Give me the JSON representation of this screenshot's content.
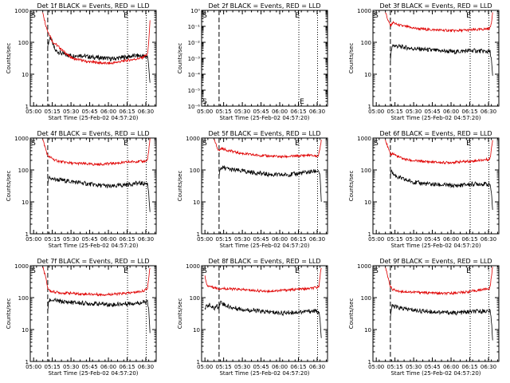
{
  "figure": {
    "xlabel": "Start Time (25-Feb-02 04:57:20)",
    "ylabel": "Counts/sec",
    "x_tick_labels": [
      "05:00",
      "05:15",
      "05:30",
      "05:45",
      "06:00",
      "06:15",
      "06:30"
    ],
    "y_tick_labels": [
      "1",
      "10",
      "100",
      "1000"
    ],
    "y_tick_labels_panel2": [
      "10⁻⁶",
      "10⁻⁵",
      "10⁻⁴",
      "10⁻³",
      "10⁻²",
      "10⁻¹",
      "10⁰"
    ],
    "marker_start": "S",
    "marker_end": "E",
    "colors": {
      "events": "#000000",
      "lld": "#e00000"
    }
  },
  "chart_data": [
    {
      "type": "line",
      "detector": "1f",
      "title": "Det 1f BLACK = Events, RED = LLD",
      "xlim": [
        0,
        101
      ],
      "ylim": [
        1,
        1000
      ],
      "yscale": "log",
      "x_ticks_min": [
        2.67,
        17.67,
        32.67,
        47.67,
        62.67,
        77.67,
        92.67
      ],
      "vlines": {
        "dashed": 14,
        "dotted": [
          78,
          93
        ]
      },
      "series": [
        {
          "name": "Events",
          "color": "#000000",
          "x": [
            14,
            16,
            18,
            20,
            25,
            30,
            35,
            40,
            45,
            50,
            55,
            60,
            65,
            70,
            75,
            80,
            85,
            90,
            94,
            95,
            96
          ],
          "y": [
            80,
            150,
            90,
            55,
            45,
            40,
            38,
            40,
            36,
            34,
            33,
            32,
            30,
            32,
            34,
            36,
            38,
            37,
            35,
            20,
            5
          ]
        },
        {
          "name": "LLD",
          "color": "#e00000",
          "x": [
            10,
            12,
            14,
            16,
            18,
            20,
            25,
            30,
            35,
            40,
            45,
            50,
            55,
            60,
            65,
            70,
            75,
            80,
            85,
            90,
            93,
            94,
            95,
            96
          ],
          "y": [
            900,
            400,
            220,
            160,
            100,
            90,
            60,
            40,
            30,
            28,
            25,
            24,
            23,
            22,
            22,
            24,
            26,
            28,
            30,
            33,
            40,
            40,
            100,
            450
          ]
        }
      ]
    },
    {
      "type": "line",
      "detector": "2f",
      "title": "Det 2f BLACK = Events, RED = LLD",
      "xlim": [
        0,
        101
      ],
      "ylim": [
        1e-06,
        1
      ],
      "yscale": "log",
      "x_ticks_min": [
        2.67,
        17.67,
        32.67,
        47.67,
        62.67,
        77.67,
        92.67
      ],
      "vlines": {
        "dashed": 14,
        "dotted": [
          78,
          93
        ]
      },
      "series": []
    },
    {
      "type": "line",
      "detector": "3f",
      "title": "Det 3f BLACK = Events, RED = LLD",
      "xlim": [
        0,
        101
      ],
      "ylim": [
        1,
        1000
      ],
      "yscale": "log",
      "x_ticks_min": [
        2.67,
        17.67,
        32.67,
        47.67,
        62.67,
        77.67,
        92.67
      ],
      "vlines": {
        "dashed": 14,
        "dotted": [
          78,
          93
        ]
      },
      "series": [
        {
          "name": "Events",
          "color": "#000000",
          "x": [
            14,
            15,
            16,
            20,
            25,
            30,
            35,
            40,
            45,
            50,
            55,
            60,
            65,
            70,
            75,
            80,
            85,
            90,
            94,
            95,
            96
          ],
          "y": [
            30,
            60,
            80,
            75,
            70,
            65,
            62,
            60,
            58,
            55,
            54,
            52,
            50,
            52,
            54,
            55,
            53,
            52,
            50,
            30,
            8
          ]
        },
        {
          "name": "LLD",
          "color": "#e00000",
          "x": [
            10,
            12,
            14,
            16,
            20,
            25,
            30,
            35,
            40,
            45,
            50,
            55,
            60,
            65,
            70,
            75,
            80,
            85,
            90,
            93,
            94,
            95,
            96
          ],
          "y": [
            900,
            500,
            330,
            420,
            350,
            320,
            290,
            270,
            260,
            250,
            245,
            240,
            235,
            230,
            235,
            240,
            245,
            250,
            260,
            270,
            280,
            400,
            900
          ]
        }
      ]
    },
    {
      "type": "line",
      "detector": "4f",
      "title": "Det 4f BLACK = Events, RED = LLD",
      "xlim": [
        0,
        101
      ],
      "ylim": [
        1,
        1000
      ],
      "yscale": "log",
      "x_ticks_min": [
        2.67,
        17.67,
        32.67,
        47.67,
        62.67,
        77.67,
        92.67
      ],
      "vlines": {
        "dashed": 14,
        "dotted": [
          78,
          93
        ]
      },
      "series": [
        {
          "name": "Events",
          "color": "#000000",
          "x": [
            14,
            15,
            16,
            20,
            25,
            30,
            35,
            40,
            45,
            50,
            55,
            60,
            65,
            70,
            75,
            80,
            85,
            90,
            94,
            95,
            96
          ],
          "y": [
            30,
            60,
            55,
            50,
            48,
            45,
            42,
            40,
            37,
            35,
            33,
            32,
            30,
            32,
            34,
            36,
            38,
            38,
            37,
            20,
            5
          ]
        },
        {
          "name": "LLD",
          "color": "#e00000",
          "x": [
            10,
            12,
            14,
            16,
            20,
            25,
            30,
            35,
            40,
            45,
            50,
            55,
            60,
            65,
            70,
            75,
            80,
            85,
            90,
            93,
            94,
            95,
            96
          ],
          "y": [
            900,
            500,
            280,
            250,
            200,
            180,
            170,
            160,
            160,
            155,
            150,
            150,
            155,
            160,
            165,
            170,
            180,
            185,
            185,
            190,
            210,
            400,
            900
          ]
        }
      ]
    },
    {
      "type": "line",
      "detector": "5f",
      "title": "Det 5f BLACK = Events, RED = LLD",
      "xlim": [
        0,
        101
      ],
      "ylim": [
        1,
        1000
      ],
      "yscale": "log",
      "x_ticks_min": [
        2.67,
        17.67,
        32.67,
        47.67,
        62.67,
        77.67,
        92.67
      ],
      "vlines": {
        "dashed": 14,
        "dotted": [
          78,
          93
        ]
      },
      "series": [
        {
          "name": "Events",
          "color": "#000000",
          "x": [
            14,
            15,
            16,
            20,
            25,
            30,
            35,
            40,
            45,
            50,
            55,
            60,
            65,
            70,
            75,
            80,
            85,
            90,
            94,
            95,
            96
          ],
          "y": [
            60,
            110,
            120,
            110,
            100,
            95,
            90,
            85,
            80,
            75,
            72,
            70,
            70,
            72,
            75,
            80,
            85,
            90,
            95,
            60,
            10
          ]
        },
        {
          "name": "LLD",
          "color": "#e00000",
          "x": [
            10,
            12,
            14,
            16,
            20,
            25,
            30,
            35,
            40,
            45,
            50,
            55,
            60,
            65,
            70,
            75,
            80,
            85,
            90,
            93,
            94,
            95,
            96
          ],
          "y": [
            900,
            550,
            400,
            480,
            420,
            380,
            340,
            320,
            300,
            290,
            280,
            270,
            265,
            260,
            265,
            270,
            280,
            290,
            280,
            270,
            300,
            500,
            900
          ]
        }
      ]
    },
    {
      "type": "line",
      "detector": "6f",
      "title": "Det 6f BLACK = Events, RED = LLD",
      "xlim": [
        0,
        101
      ],
      "ylim": [
        1,
        1000
      ],
      "yscale": "log",
      "x_ticks_min": [
        2.67,
        17.67,
        32.67,
        47.67,
        62.67,
        77.67,
        92.67
      ],
      "vlines": {
        "dashed": 14,
        "dotted": [
          78,
          93
        ]
      },
      "series": [
        {
          "name": "Events",
          "color": "#000000",
          "x": [
            14,
            15,
            16,
            20,
            25,
            30,
            35,
            40,
            45,
            50,
            55,
            60,
            65,
            70,
            75,
            80,
            85,
            90,
            94,
            95,
            96
          ],
          "y": [
            60,
            110,
            75,
            60,
            50,
            45,
            40,
            38,
            36,
            35,
            34,
            33,
            32,
            33,
            35,
            36,
            37,
            36,
            35,
            20,
            5
          ]
        },
        {
          "name": "LLD",
          "color": "#e00000",
          "x": [
            10,
            12,
            14,
            16,
            20,
            25,
            30,
            35,
            40,
            45,
            50,
            55,
            60,
            65,
            70,
            75,
            80,
            85,
            90,
            93,
            94,
            95,
            96
          ],
          "y": [
            900,
            500,
            300,
            330,
            260,
            220,
            200,
            190,
            185,
            180,
            175,
            170,
            170,
            175,
            180,
            185,
            190,
            200,
            210,
            215,
            230,
            450,
            900
          ]
        }
      ]
    },
    {
      "type": "line",
      "detector": "7f",
      "title": "Det 7f BLACK = Events, RED = LLD",
      "xlim": [
        0,
        101
      ],
      "ylim": [
        1,
        1000
      ],
      "yscale": "log",
      "x_ticks_min": [
        2.67,
        17.67,
        32.67,
        47.67,
        62.67,
        77.67,
        92.67
      ],
      "vlines": {
        "dashed": 14,
        "dotted": [
          78,
          93
        ]
      },
      "series": [
        {
          "name": "Events",
          "color": "#000000",
          "x": [
            14,
            15,
            16,
            20,
            25,
            30,
            35,
            40,
            45,
            50,
            55,
            60,
            65,
            70,
            75,
            80,
            85,
            90,
            94,
            95,
            96
          ],
          "y": [
            40,
            80,
            85,
            80,
            75,
            72,
            70,
            68,
            66,
            65,
            64,
            62,
            60,
            62,
            64,
            66,
            68,
            70,
            72,
            40,
            8
          ]
        },
        {
          "name": "LLD",
          "color": "#e00000",
          "x": [
            10,
            12,
            14,
            16,
            20,
            25,
            30,
            35,
            40,
            45,
            50,
            55,
            60,
            65,
            70,
            75,
            80,
            85,
            90,
            93,
            94,
            95,
            96
          ],
          "y": [
            900,
            500,
            200,
            160,
            150,
            140,
            140,
            135,
            130,
            130,
            128,
            125,
            125,
            128,
            130,
            135,
            140,
            150,
            160,
            180,
            200,
            400,
            900
          ]
        }
      ]
    },
    {
      "type": "line",
      "detector": "8f",
      "title": "Det 8f BLACK = Events, RED = LLD",
      "xlim": [
        0,
        101
      ],
      "ylim": [
        1,
        1000
      ],
      "yscale": "log",
      "x_ticks_min": [
        2.67,
        17.67,
        32.67,
        47.67,
        62.67,
        77.67,
        92.67
      ],
      "vlines": {
        "dashed": 14,
        "dotted": [
          78,
          93
        ]
      },
      "series": [
        {
          "name": "Events",
          "color": "#000000",
          "x": [
            2.7,
            4,
            6,
            8,
            10,
            12,
            14,
            15,
            16,
            20,
            25,
            30,
            35,
            40,
            45,
            50,
            55,
            60,
            65,
            70,
            75,
            80,
            85,
            90,
            94,
            95,
            96
          ],
          "y": [
            40,
            55,
            60,
            50,
            45,
            55,
            50,
            75,
            70,
            55,
            48,
            45,
            42,
            40,
            38,
            36,
            35,
            34,
            33,
            34,
            35,
            36,
            37,
            38,
            36,
            20,
            5
          ]
        },
        {
          "name": "LLD",
          "color": "#e00000",
          "x": [
            2.7,
            4,
            6,
            8,
            10,
            12,
            14,
            16,
            20,
            25,
            30,
            35,
            40,
            45,
            50,
            55,
            60,
            65,
            70,
            75,
            80,
            85,
            90,
            93,
            94,
            95,
            96
          ],
          "y": [
            500,
            250,
            230,
            220,
            210,
            200,
            190,
            195,
            190,
            185,
            180,
            175,
            170,
            165,
            160,
            160,
            165,
            170,
            175,
            180,
            185,
            190,
            200,
            210,
            230,
            450,
            900
          ]
        }
      ]
    },
    {
      "type": "line",
      "detector": "9f",
      "title": "Det 9f BLACK = Events, RED = LLD",
      "xlim": [
        0,
        101
      ],
      "ylim": [
        1,
        1000
      ],
      "yscale": "log",
      "x_ticks_min": [
        2.67,
        17.67,
        32.67,
        47.67,
        62.67,
        77.67,
        92.67
      ],
      "vlines": {
        "dashed": 14,
        "dotted": [
          78,
          93
        ]
      },
      "series": [
        {
          "name": "Events",
          "color": "#000000",
          "x": [
            14,
            15,
            16,
            20,
            25,
            30,
            35,
            40,
            45,
            50,
            55,
            60,
            65,
            70,
            75,
            80,
            85,
            90,
            94,
            95,
            96
          ],
          "y": [
            25,
            50,
            55,
            48,
            45,
            42,
            40,
            38,
            37,
            36,
            35,
            34,
            33,
            34,
            35,
            36,
            37,
            38,
            37,
            20,
            5
          ]
        },
        {
          "name": "LLD",
          "color": "#e00000",
          "x": [
            10,
            12,
            14,
            16,
            20,
            25,
            30,
            35,
            40,
            45,
            50,
            55,
            60,
            65,
            70,
            75,
            80,
            85,
            90,
            93,
            94,
            95,
            96
          ],
          "y": [
            900,
            450,
            220,
            180,
            160,
            155,
            150,
            148,
            145,
            140,
            138,
            135,
            135,
            140,
            145,
            150,
            160,
            170,
            185,
            190,
            210,
            450,
            900
          ]
        }
      ]
    }
  ]
}
